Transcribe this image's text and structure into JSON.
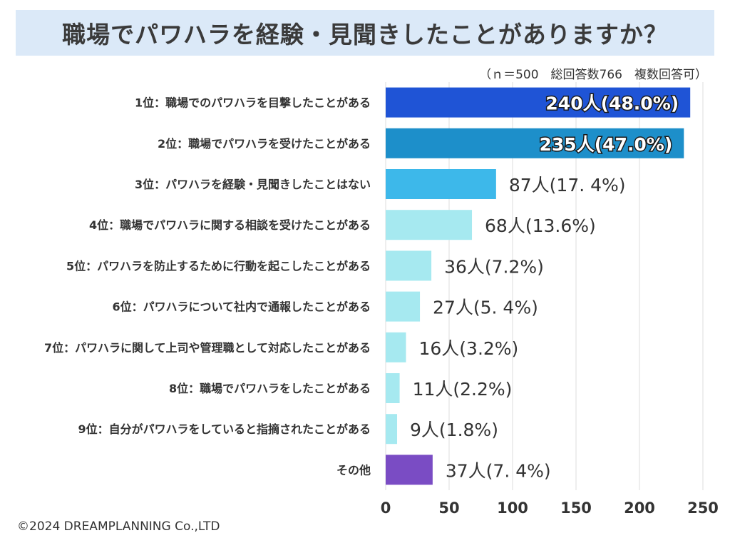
{
  "title": "職場でパワハラを経験・見聞きしたことがありますか？",
  "note": "（ｎ＝500　総回答数766　複数回答可）",
  "credit": "©2024 DREAMPLANNING Co.,LTD",
  "colors": {
    "title_bg": "#dbe9f8",
    "grid": "#dddddd",
    "bars": [
      "#1f54d6",
      "#1d8fca",
      "#3db8ea",
      "#a6e9f0",
      "#a6e9f0",
      "#a6e9f0",
      "#a6e9f0",
      "#a6e9f0",
      "#a6e9f0",
      "#7a4cc4"
    ]
  },
  "chart_data": {
    "type": "bar",
    "orientation": "horizontal",
    "title": "職場でパワハラを経験・見聞きしたことがありますか？",
    "categories": [
      "1位：職場でのパワハラを目撃したことがある",
      "2位：職場でパワハラを受けたことがある",
      "3位：パワハラを経験・見聞きしたことはない",
      "4位：職場でパワハラに関する相談を受けたことがある",
      "5位：パワハラを防止するために行動を起こしたことがある",
      "6位：パワハラについて社内で通報したことがある",
      "7位：パワハラに関して上司や管理職として対応したことがある",
      "8位：職場でパワハラをしたことがある",
      "9位：自分がパワハラをしていると指摘されたことがある",
      "その他"
    ],
    "values": [
      240,
      235,
      87,
      68,
      36,
      27,
      16,
      11,
      9,
      37
    ],
    "value_labels": [
      "240人(48.0%)",
      "235人(47.0%)",
      "87人(17. 4%)",
      "68人(13.6%)",
      "36人(7.2%)",
      "27人(5. 4%)",
      "16人(3.2%)",
      "11人(2.2%)",
      "9人(1.8%)",
      "37人(7. 4%)"
    ],
    "xlim": [
      0,
      250
    ],
    "xticks": [
      0,
      50,
      100,
      150,
      200,
      250
    ],
    "xtick_labels": [
      "0",
      "50",
      "100",
      "150",
      "200",
      "250"
    ],
    "grid": true,
    "xlabel": "",
    "ylabel": ""
  }
}
